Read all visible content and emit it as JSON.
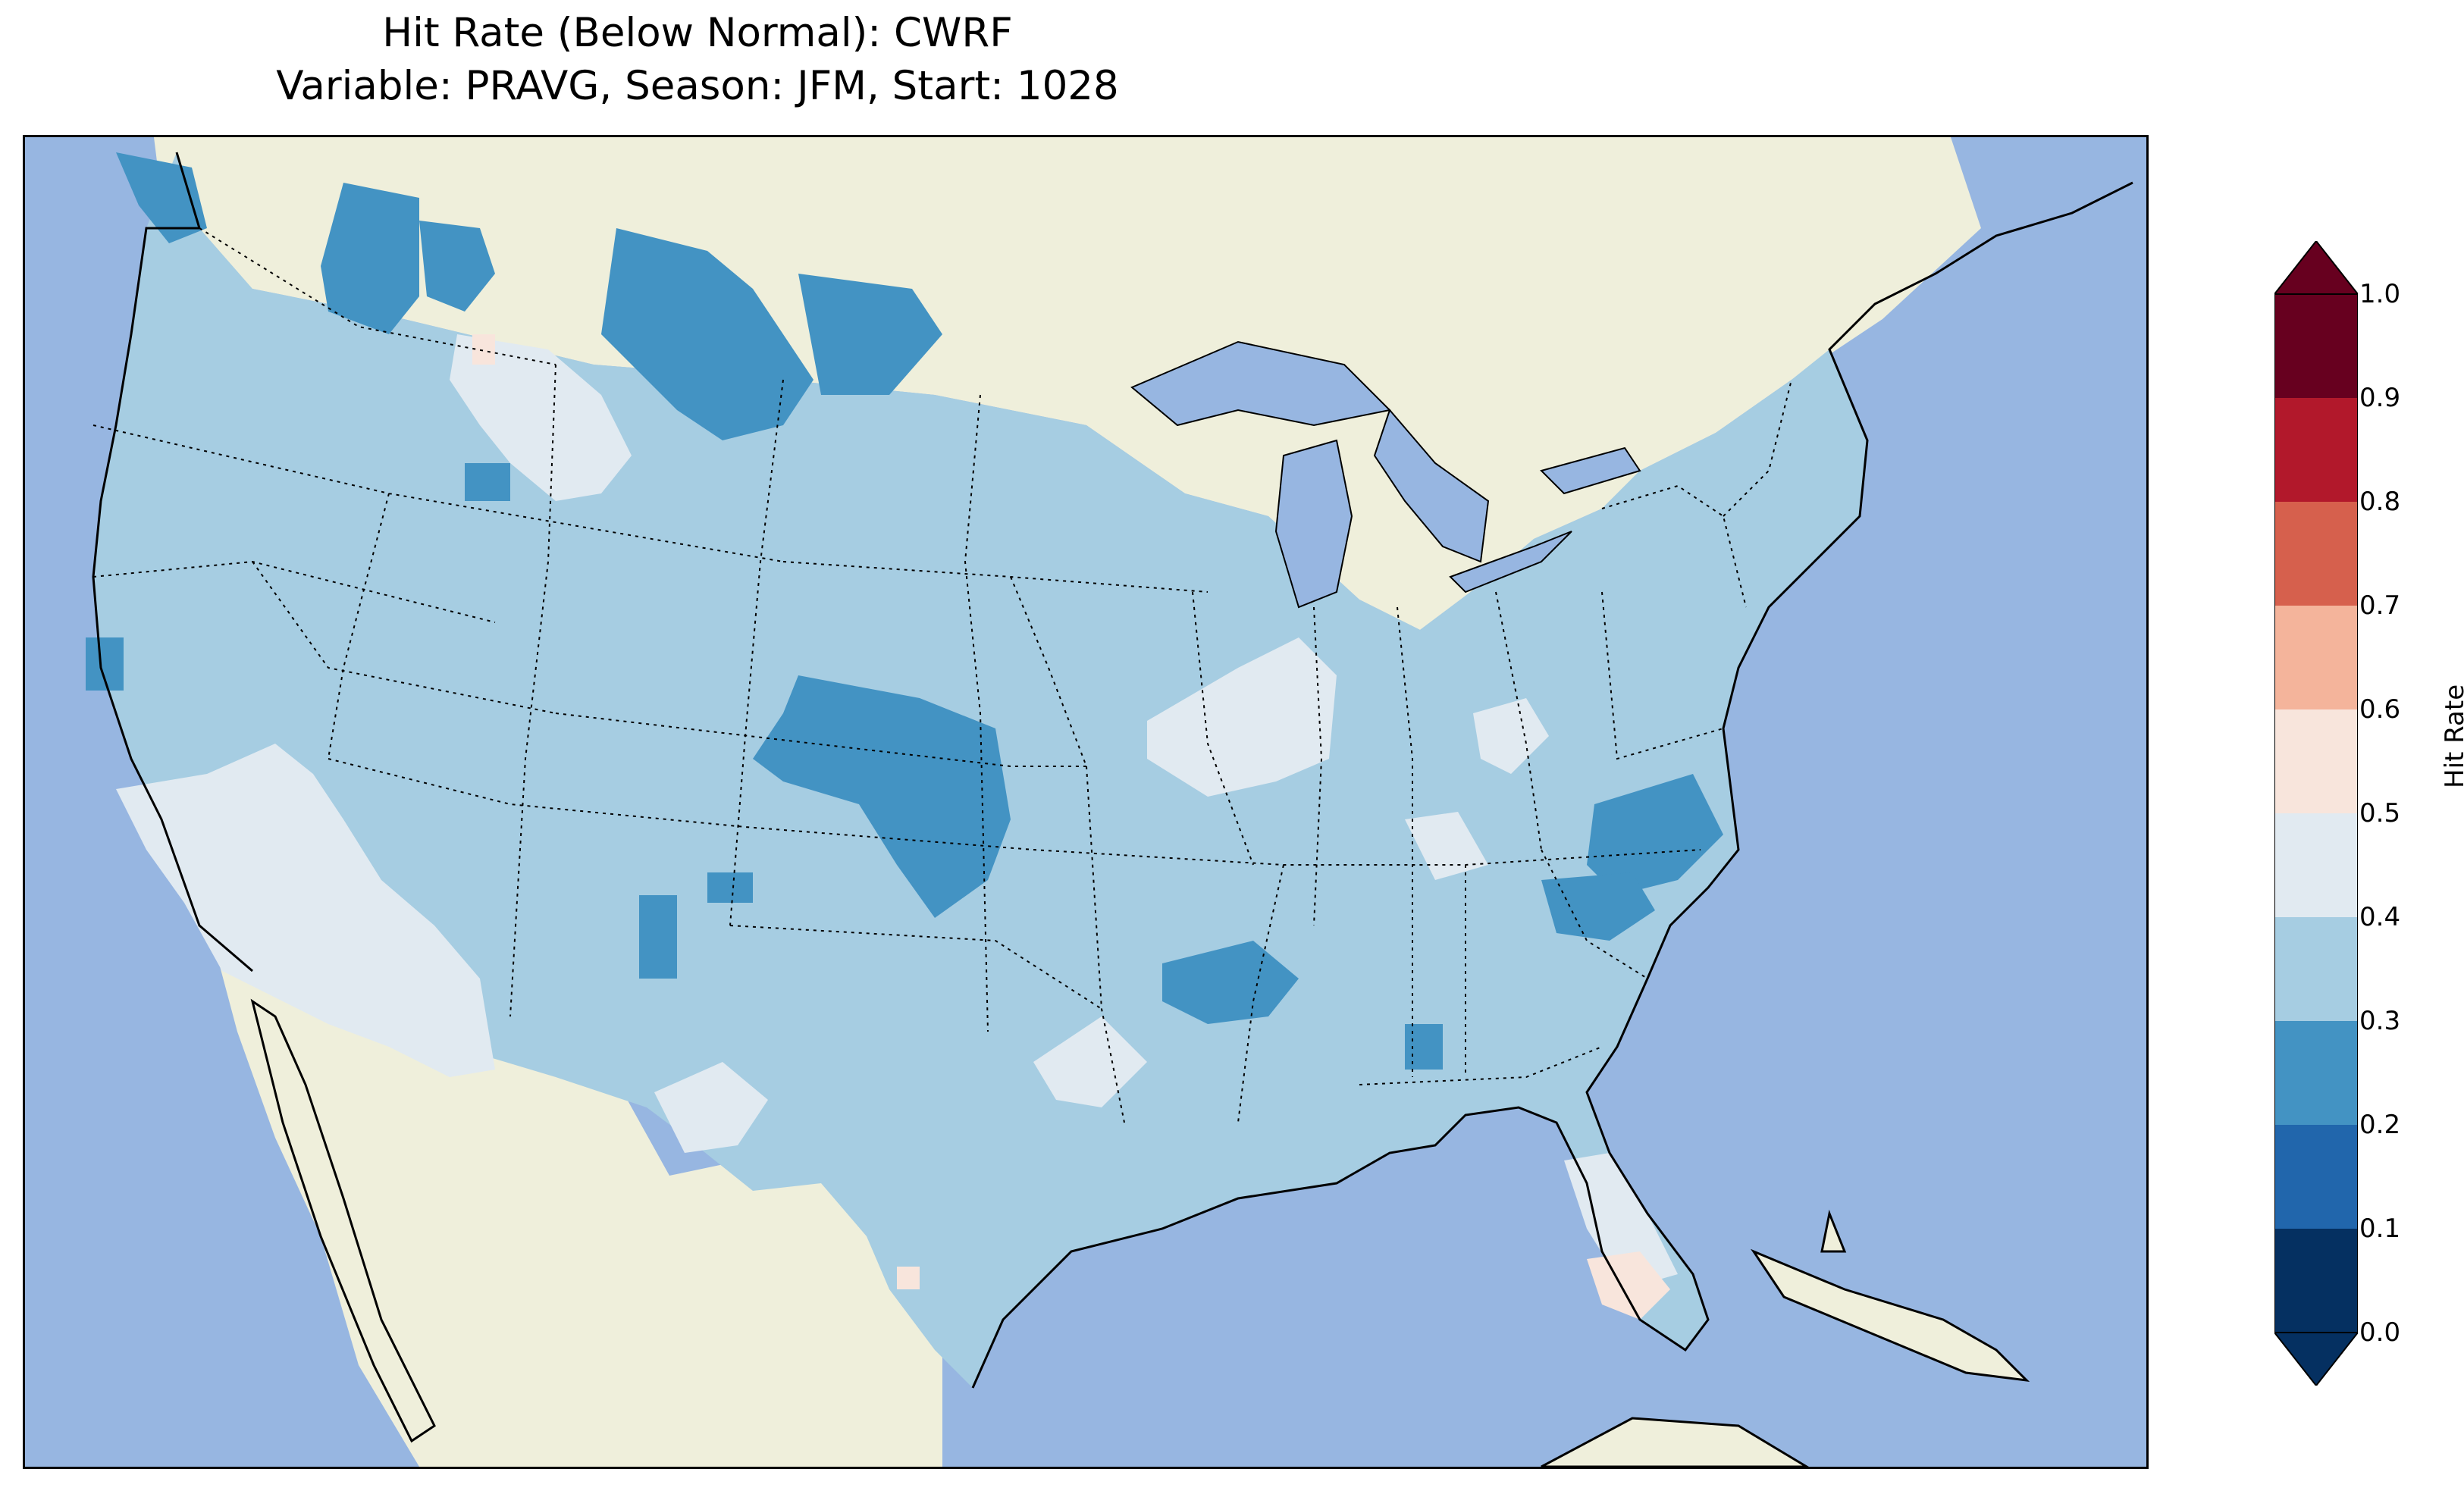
{
  "title": {
    "line1": "Hit Rate (Below Normal): CWRF",
    "line2": "Variable: PRAVG, Season: JFM, Start: 1028"
  },
  "colors": {
    "ocean": "#97b6e1",
    "land": "#efefdb",
    "lakes": "#97b6e1"
  },
  "colorbar": {
    "label": "Hit Rate",
    "ticks": [
      "0.0",
      "0.1",
      "0.2",
      "0.3",
      "0.4",
      "0.5",
      "0.6",
      "0.7",
      "0.8",
      "0.9",
      "1.0"
    ],
    "levels": [
      0.0,
      0.1,
      0.2,
      0.3,
      0.4,
      0.5,
      0.6,
      0.7,
      0.8,
      0.9,
      1.0
    ],
    "bins": [
      {
        "range": [
          0.0,
          0.1
        ],
        "color": "#053061"
      },
      {
        "range": [
          0.1,
          0.2
        ],
        "color": "#2166ac"
      },
      {
        "range": [
          0.2,
          0.3
        ],
        "color": "#4393c3"
      },
      {
        "range": [
          0.3,
          0.4
        ],
        "color": "#a6cde2"
      },
      {
        "range": [
          0.4,
          0.5
        ],
        "color": "#e1eaf1"
      },
      {
        "range": [
          0.5,
          0.6
        ],
        "color": "#f8e5dc"
      },
      {
        "range": [
          0.6,
          0.7
        ],
        "color": "#f4b49b"
      },
      {
        "range": [
          0.7,
          0.8
        ],
        "color": "#d6604d"
      },
      {
        "range": [
          0.8,
          0.9
        ],
        "color": "#b2182b"
      },
      {
        "range": [
          0.9,
          1.0
        ],
        "color": "#67001f"
      }
    ],
    "extend": "both"
  },
  "map_data": {
    "region": "Contiguous United States",
    "dominant_bin": "0.3-0.4",
    "notable_areas": [
      {
        "area": "Montana / western North Dakota",
        "bin": "0.2-0.3"
      },
      {
        "area": "Idaho panhandle / northern Washington",
        "bin": "0.2-0.3"
      },
      {
        "area": "Kansas",
        "bin": "0.2-0.3"
      },
      {
        "area": "North Carolina / South Carolina",
        "bin": "0.2-0.3"
      },
      {
        "area": "Arkansas / Mississippi",
        "bin": "0.2-0.3"
      },
      {
        "area": "Southern California / Nevada / Arizona",
        "bin": "0.4-0.5"
      },
      {
        "area": "Wyoming",
        "bin": "0.4-0.5"
      },
      {
        "area": "Illinois / Missouri",
        "bin": "0.4-0.5"
      },
      {
        "area": "Southern Florida",
        "bin": "0.5-0.6"
      }
    ]
  }
}
